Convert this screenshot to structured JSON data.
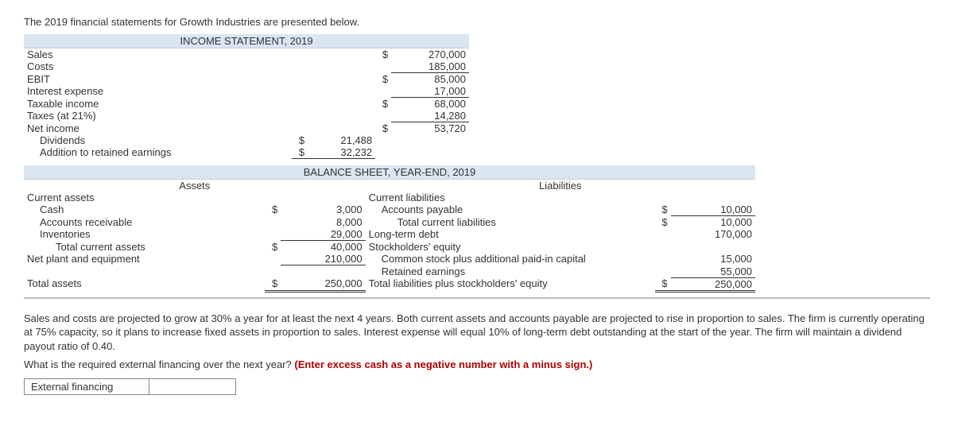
{
  "intro": "The 2019 financial statements for Growth Industries are presented below.",
  "income": {
    "header": "INCOME STATEMENT, 2019",
    "rows": {
      "sales_l": "Sales",
      "sales_d": "$",
      "sales_v": "270,000",
      "costs_l": "Costs",
      "costs_v": "185,000",
      "ebit_l": "EBIT",
      "ebit_d": "$",
      "ebit_v": "85,000",
      "int_l": "Interest expense",
      "int_v": "17,000",
      "ti_l": "Taxable income",
      "ti_d": "$",
      "ti_v": "68,000",
      "tax_l": "Taxes (at 21%)",
      "tax_v": "14,280",
      "ni_l": "Net income",
      "ni_d": "$",
      "ni_v": "53,720",
      "div_l": "Dividends",
      "div_d": "$",
      "div_v": "21,488",
      "ret_l": "Addition to retained earnings",
      "ret_d": "$",
      "ret_v": "32,232"
    }
  },
  "balance": {
    "header": "BALANCE SHEET, YEAR-END, 2019",
    "assets_h": "Assets",
    "liab_h": "Liabilities",
    "assets": {
      "ca_l": "Current assets",
      "cash_l": "Cash",
      "cash_d": "$",
      "cash_v": "3,000",
      "ar_l": "Accounts receivable",
      "ar_v": "8,000",
      "inv_l": "Inventories",
      "inv_v": "29,000",
      "tca_l": "Total current assets",
      "tca_d": "$",
      "tca_v": "40,000",
      "npe_l": "Net plant and equipment",
      "npe_v": "210,000",
      "ta_l": "Total assets",
      "ta_d": "$",
      "ta_v": "250,000"
    },
    "liab": {
      "cl_l": "Current liabilities",
      "ap_l": "Accounts payable",
      "ap_d": "$",
      "ap_v": "10,000",
      "tcl_l": "Total current liabilities",
      "tcl_d": "$",
      "tcl_v": "10,000",
      "ltd_l": "Long-term debt",
      "ltd_v": "170,000",
      "se_l": "Stockholders' equity",
      "cs_l": "Common stock plus additional paid-in capital",
      "cs_v": "15,000",
      "re_l": "Retained earnings",
      "re_v": "55,000",
      "tot_l": "Total liabilities plus stockholders' equity",
      "tot_d": "$",
      "tot_v": "250,000"
    }
  },
  "paragraph1": "Sales and costs are projected to grow at 30% a year for at least the next 4 years. Both current assets and accounts payable are projected to rise in proportion to sales. The firm is currently operating at 75% capacity, so it plans to increase fixed assets in proportion to sales. Interest expense will equal 10% of long-term debt outstanding at the start of the year. The firm will maintain a dividend payout ratio of 0.40.",
  "question_pre": "What is the required external financing over the next year? ",
  "question_red": "(Enter excess cash as a negative number with a minus sign.)",
  "answer_label": "External financing"
}
